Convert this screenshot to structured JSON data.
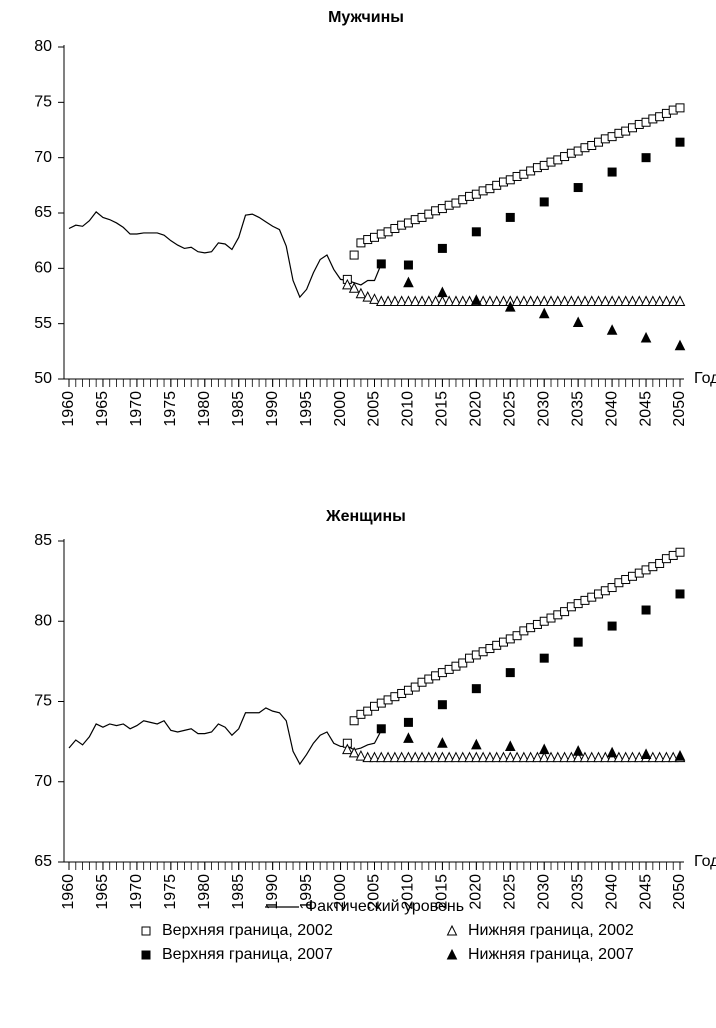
{
  "chart_data": [
    {
      "type": "line",
      "title": "Мужчины",
      "x_label": "Годы",
      "xlim": [
        1960,
        2050
      ],
      "xticks": [
        1960,
        1965,
        1970,
        1975,
        1980,
        1985,
        1990,
        1995,
        2000,
        2005,
        2010,
        2015,
        2020,
        2025,
        2030,
        2035,
        2040,
        2045,
        2050
      ],
      "ylim": [
        50,
        80
      ],
      "yticks": [
        50,
        55,
        60,
        65,
        70,
        75,
        80
      ],
      "legend": "bottom",
      "series": [
        {
          "name": "Фактический уровень",
          "marker": "line",
          "color": "#000000",
          "x": [
            1960,
            1961,
            1962,
            1963,
            1964,
            1965,
            1966,
            1967,
            1968,
            1969,
            1970,
            1971,
            1972,
            1973,
            1974,
            1975,
            1976,
            1977,
            1978,
            1979,
            1980,
            1981,
            1982,
            1983,
            1984,
            1985,
            1986,
            1987,
            1988,
            1989,
            1990,
            1991,
            1992,
            1993,
            1994,
            1995,
            1996,
            1997,
            1998,
            1999,
            2000,
            2001,
            2002,
            2003,
            2004,
            2005,
            2006
          ],
          "values": [
            63.6,
            63.9,
            63.8,
            64.3,
            65.1,
            64.6,
            64.4,
            64.1,
            63.7,
            63.1,
            63.1,
            63.2,
            63.2,
            63.2,
            63.0,
            62.5,
            62.1,
            61.8,
            61.9,
            61.5,
            61.4,
            61.5,
            62.3,
            62.2,
            61.7,
            62.8,
            64.8,
            64.9,
            64.6,
            64.2,
            63.8,
            63.5,
            62.0,
            58.9,
            57.4,
            58.1,
            59.6,
            60.8,
            61.2,
            59.9,
            59.0,
            58.9,
            58.7,
            58.5,
            58.9,
            58.9,
            60.4
          ]
        },
        {
          "name": "Верхняя граница, 2002",
          "marker": "square-open",
          "color": "#000000",
          "x": [
            2001,
            2002,
            2003,
            2004,
            2005,
            2006,
            2007,
            2008,
            2009,
            2010,
            2011,
            2012,
            2013,
            2014,
            2015,
            2016,
            2017,
            2018,
            2019,
            2020,
            2021,
            2022,
            2023,
            2024,
            2025,
            2026,
            2027,
            2028,
            2029,
            2030,
            2031,
            2032,
            2033,
            2034,
            2035,
            2036,
            2037,
            2038,
            2039,
            2040,
            2041,
            2042,
            2043,
            2044,
            2045,
            2046,
            2047,
            2048,
            2049,
            2050
          ],
          "values": [
            59.0,
            61.2,
            62.3,
            62.6,
            62.8,
            63.1,
            63.3,
            63.6,
            63.9,
            64.1,
            64.4,
            64.6,
            64.9,
            65.2,
            65.4,
            65.7,
            65.9,
            66.2,
            66.5,
            66.7,
            67.0,
            67.2,
            67.5,
            67.8,
            68.0,
            68.3,
            68.5,
            68.8,
            69.1,
            69.3,
            69.6,
            69.8,
            70.1,
            70.4,
            70.6,
            70.9,
            71.1,
            71.4,
            71.7,
            71.9,
            72.2,
            72.4,
            72.7,
            73.0,
            73.2,
            73.5,
            73.7,
            74.0,
            74.3,
            74.5
          ]
        },
        {
          "name": "Нижняя граница, 2002",
          "marker": "triangle-open",
          "color": "#000000",
          "x": [
            2001,
            2002,
            2003,
            2004,
            2005,
            2006,
            2007,
            2008,
            2009,
            2010,
            2011,
            2012,
            2013,
            2014,
            2015,
            2016,
            2017,
            2018,
            2019,
            2020,
            2021,
            2022,
            2023,
            2024,
            2025,
            2026,
            2027,
            2028,
            2029,
            2030,
            2031,
            2032,
            2033,
            2034,
            2035,
            2036,
            2037,
            2038,
            2039,
            2040,
            2041,
            2042,
            2043,
            2044,
            2045,
            2046,
            2047,
            2048,
            2049,
            2050
          ],
          "values": [
            58.5,
            58.2,
            57.7,
            57.4,
            57.2,
            57.0,
            57.0,
            57.0,
            57.0,
            57.0,
            57.0,
            57.0,
            57.0,
            57.0,
            57.0,
            57.0,
            57.0,
            57.0,
            57.0,
            57.0,
            57.0,
            57.0,
            57.0,
            57.0,
            57.0,
            57.0,
            57.0,
            57.0,
            57.0,
            57.0,
            57.0,
            57.0,
            57.0,
            57.0,
            57.0,
            57.0,
            57.0,
            57.0,
            57.0,
            57.0,
            57.0,
            57.0,
            57.0,
            57.0,
            57.0,
            57.0,
            57.0,
            57.0,
            57.0,
            57.0
          ]
        },
        {
          "name": "Верхняя граница, 2007",
          "marker": "square",
          "color": "#000000",
          "x": [
            2006,
            2010,
            2015,
            2020,
            2025,
            2030,
            2035,
            2040,
            2045,
            2050
          ],
          "values": [
            60.4,
            60.3,
            61.8,
            63.3,
            64.6,
            66.0,
            67.3,
            68.7,
            70.0,
            71.4
          ]
        },
        {
          "name": "Нижняя граница, 2007",
          "marker": "triangle",
          "color": "#000000",
          "x": [
            2010,
            2015,
            2020,
            2025,
            2030,
            2035,
            2040,
            2045,
            2050
          ],
          "values": [
            58.7,
            57.8,
            57.1,
            56.5,
            55.9,
            55.1,
            54.4,
            53.7,
            53.0
          ]
        }
      ]
    },
    {
      "type": "line",
      "title": "Женщины",
      "x_label": "Годы",
      "xlim": [
        1960,
        2050
      ],
      "xticks": [
        1960,
        1965,
        1970,
        1975,
        1980,
        1985,
        1990,
        1995,
        2000,
        2005,
        2010,
        2015,
        2020,
        2025,
        2030,
        2035,
        2040,
        2045,
        2050
      ],
      "ylim": [
        65,
        85
      ],
      "yticks": [
        65,
        70,
        75,
        80,
        85
      ],
      "series": [
        {
          "name": "Фактический уровень",
          "marker": "line",
          "color": "#000000",
          "x": [
            1960,
            1961,
            1962,
            1963,
            1964,
            1965,
            1966,
            1967,
            1968,
            1969,
            1970,
            1971,
            1972,
            1973,
            1974,
            1975,
            1976,
            1977,
            1978,
            1979,
            1980,
            1981,
            1982,
            1983,
            1984,
            1985,
            1986,
            1987,
            1988,
            1989,
            1990,
            1991,
            1992,
            1993,
            1994,
            1995,
            1996,
            1997,
            1998,
            1999,
            2000,
            2001,
            2002,
            2003,
            2004,
            2005,
            2006
          ],
          "values": [
            72.1,
            72.6,
            72.3,
            72.8,
            73.6,
            73.4,
            73.6,
            73.5,
            73.6,
            73.3,
            73.5,
            73.8,
            73.7,
            73.6,
            73.8,
            73.2,
            73.1,
            73.2,
            73.3,
            73.0,
            73.0,
            73.1,
            73.6,
            73.4,
            72.9,
            73.3,
            74.3,
            74.3,
            74.3,
            74.6,
            74.4,
            74.3,
            73.8,
            71.9,
            71.1,
            71.7,
            72.4,
            72.9,
            73.1,
            72.4,
            72.2,
            72.2,
            72.0,
            72.1,
            72.3,
            72.4,
            73.2
          ]
        },
        {
          "name": "Верхняя граница, 2002",
          "marker": "square-open",
          "color": "#000000",
          "x": [
            2001,
            2002,
            2003,
            2004,
            2005,
            2006,
            2007,
            2008,
            2009,
            2010,
            2011,
            2012,
            2013,
            2014,
            2015,
            2016,
            2017,
            2018,
            2019,
            2020,
            2021,
            2022,
            2023,
            2024,
            2025,
            2026,
            2027,
            2028,
            2029,
            2030,
            2031,
            2032,
            2033,
            2034,
            2035,
            2036,
            2037,
            2038,
            2039,
            2040,
            2041,
            2042,
            2043,
            2044,
            2045,
            2046,
            2047,
            2048,
            2049,
            2050
          ],
          "values": [
            72.4,
            73.8,
            74.2,
            74.4,
            74.7,
            74.9,
            75.1,
            75.3,
            75.5,
            75.7,
            75.9,
            76.2,
            76.4,
            76.6,
            76.8,
            77.0,
            77.2,
            77.4,
            77.7,
            77.9,
            78.1,
            78.3,
            78.5,
            78.7,
            78.9,
            79.1,
            79.4,
            79.6,
            79.8,
            80.0,
            80.2,
            80.4,
            80.6,
            80.9,
            81.1,
            81.3,
            81.5,
            81.7,
            81.9,
            82.1,
            82.4,
            82.6,
            82.8,
            83.0,
            83.2,
            83.4,
            83.6,
            83.9,
            84.1,
            84.3
          ]
        },
        {
          "name": "Нижняя граница, 2002",
          "marker": "triangle-open",
          "color": "#000000",
          "x": [
            2001,
            2002,
            2003,
            2004,
            2005,
            2006,
            2007,
            2008,
            2009,
            2010,
            2011,
            2012,
            2013,
            2014,
            2015,
            2016,
            2017,
            2018,
            2019,
            2020,
            2021,
            2022,
            2023,
            2024,
            2025,
            2026,
            2027,
            2028,
            2029,
            2030,
            2031,
            2032,
            2033,
            2034,
            2035,
            2036,
            2037,
            2038,
            2039,
            2040,
            2041,
            2042,
            2043,
            2044,
            2045,
            2046,
            2047,
            2048,
            2049,
            2050
          ],
          "values": [
            72.0,
            71.8,
            71.6,
            71.5,
            71.5,
            71.5,
            71.5,
            71.5,
            71.5,
            71.5,
            71.5,
            71.5,
            71.5,
            71.5,
            71.5,
            71.5,
            71.5,
            71.5,
            71.5,
            71.5,
            71.5,
            71.5,
            71.5,
            71.5,
            71.5,
            71.5,
            71.5,
            71.5,
            71.5,
            71.5,
            71.5,
            71.5,
            71.5,
            71.5,
            71.5,
            71.5,
            71.5,
            71.5,
            71.5,
            71.5,
            71.5,
            71.5,
            71.5,
            71.5,
            71.5,
            71.5,
            71.5,
            71.5,
            71.5,
            71.5
          ]
        },
        {
          "name": "Верхняя граница, 2007",
          "marker": "square",
          "color": "#000000",
          "x": [
            2006,
            2010,
            2015,
            2020,
            2025,
            2030,
            2035,
            2040,
            2045,
            2050
          ],
          "values": [
            73.3,
            73.7,
            74.8,
            75.8,
            76.8,
            77.7,
            78.7,
            79.7,
            80.7,
            81.7
          ]
        },
        {
          "name": "Нижняя граница, 2007",
          "marker": "triangle",
          "color": "#000000",
          "x": [
            2010,
            2015,
            2020,
            2025,
            2030,
            2035,
            2040,
            2045,
            2050
          ],
          "values": [
            72.7,
            72.4,
            72.3,
            72.2,
            72.0,
            71.9,
            71.8,
            71.7,
            71.6
          ]
        }
      ]
    }
  ]
}
